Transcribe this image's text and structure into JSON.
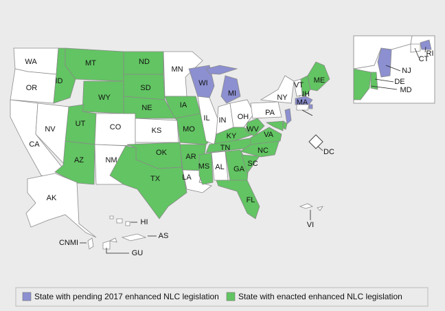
{
  "map": {
    "legend": [
      {
        "label": "State with pending 2017 enhanced NLC legislation",
        "color": "#8c8fd0"
      },
      {
        "label": "State with enacted enhanced NLC legislation",
        "color": "#62c462"
      }
    ],
    "states": [
      {
        "label": "WA",
        "status": null
      },
      {
        "label": "OR",
        "status": null
      },
      {
        "label": "CA",
        "status": null
      },
      {
        "label": "NV",
        "status": null
      },
      {
        "label": "ID",
        "status": 1
      },
      {
        "label": "MT",
        "status": 1
      },
      {
        "label": "WY",
        "status": 1
      },
      {
        "label": "UT",
        "status": 1
      },
      {
        "label": "CO",
        "status": null
      },
      {
        "label": "AZ",
        "status": 1
      },
      {
        "label": "NM",
        "status": null
      },
      {
        "label": "ND",
        "status": 1
      },
      {
        "label": "SD",
        "status": 1
      },
      {
        "label": "NE",
        "status": 1
      },
      {
        "label": "KS",
        "status": null
      },
      {
        "label": "OK",
        "status": 1
      },
      {
        "label": "TX",
        "status": 1
      },
      {
        "label": "MN",
        "status": null
      },
      {
        "label": "IA",
        "status": 1
      },
      {
        "label": "MO",
        "status": 1
      },
      {
        "label": "AR",
        "status": 1
      },
      {
        "label": "LA",
        "status": null
      },
      {
        "label": "WI",
        "status": 0
      },
      {
        "label": "IL",
        "status": null
      },
      {
        "label": "MI",
        "status": 0
      },
      {
        "label": "IN",
        "status": null
      },
      {
        "label": "OH",
        "status": null
      },
      {
        "label": "KY",
        "status": 1
      },
      {
        "label": "TN",
        "status": 1
      },
      {
        "label": "MS",
        "status": 1
      },
      {
        "label": "AL",
        "status": null
      },
      {
        "label": "GA",
        "status": 1
      },
      {
        "label": "FL",
        "status": 1
      },
      {
        "label": "SC",
        "status": 1
      },
      {
        "label": "NC",
        "status": 1
      },
      {
        "label": "VA",
        "status": 1
      },
      {
        "label": "WV",
        "status": 1
      },
      {
        "label": "PA",
        "status": null
      },
      {
        "label": "NY",
        "status": null
      },
      {
        "label": "ME",
        "status": 1
      },
      {
        "label": "NH",
        "status": 1
      },
      {
        "label": "VT",
        "status": null
      },
      {
        "label": "MA",
        "status": 0
      },
      {
        "label": "RI",
        "status": 0
      },
      {
        "label": "CT",
        "status": null
      },
      {
        "label": "NJ",
        "status": 0
      },
      {
        "label": "DE",
        "status": 1
      },
      {
        "label": "MD",
        "status": 1
      },
      {
        "label": "DC",
        "status": null
      },
      {
        "label": "AK",
        "status": null
      },
      {
        "label": "HI",
        "status": null
      },
      {
        "label": "AS",
        "status": null
      },
      {
        "label": "CNMI",
        "status": null
      },
      {
        "label": "GU",
        "status": null
      },
      {
        "label": "VI",
        "status": null
      }
    ]
  }
}
